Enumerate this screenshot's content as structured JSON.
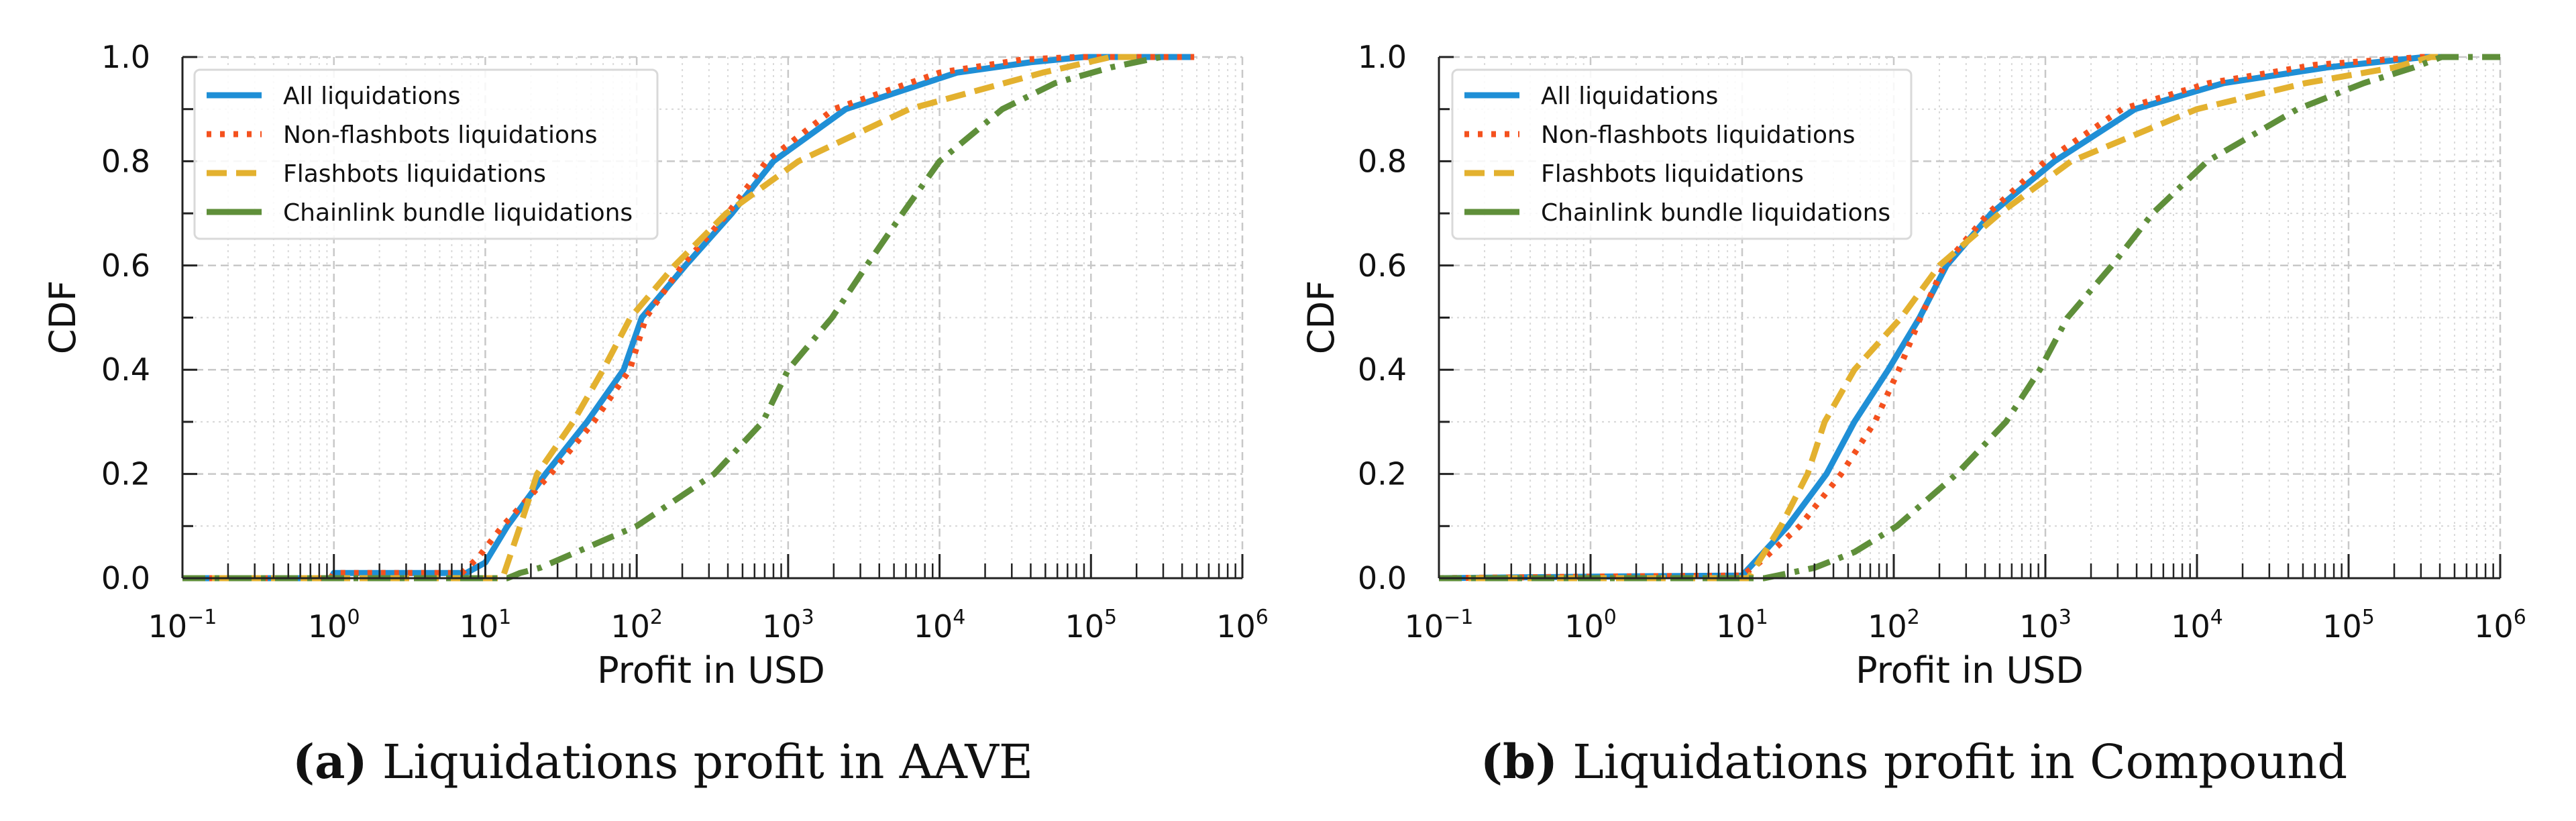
{
  "chart_data": [
    {
      "type": "line",
      "id": "aave",
      "caption_prefix": "(a)",
      "caption": "Liquidations profit in AAVE",
      "xlabel": "Profit in USD",
      "ylabel": "CDF",
      "xscale": "log",
      "xlim": [
        0.1,
        1000000
      ],
      "ylim": [
        0.0,
        1.0
      ],
      "xticks": [
        {
          "base": "10",
          "exp": "−1"
        },
        {
          "base": "10",
          "exp": "0"
        },
        {
          "base": "10",
          "exp": "1"
        },
        {
          "base": "10",
          "exp": "2"
        },
        {
          "base": "10",
          "exp": "3"
        },
        {
          "base": "10",
          "exp": "4"
        },
        {
          "base": "10",
          "exp": "5"
        },
        {
          "base": "10",
          "exp": "6"
        }
      ],
      "yticks": [
        "0.0",
        "0.2",
        "0.4",
        "0.6",
        "0.8",
        "1.0"
      ],
      "grid": true,
      "legend_position": "upper-left",
      "series": [
        {
          "name": "All liquidations",
          "style": "solid",
          "color": "#1f8fd6",
          "points": [
            [
              0.1,
              0.0
            ],
            [
              0.95,
              0.0
            ],
            [
              1.0,
              0.01
            ],
            [
              7.5,
              0.01
            ],
            [
              10,
              0.03
            ],
            [
              14,
              0.1
            ],
            [
              25,
              0.2
            ],
            [
              47,
              0.3
            ],
            [
              82,
              0.4
            ],
            [
              108,
              0.5
            ],
            [
              210,
              0.6
            ],
            [
              425,
              0.7
            ],
            [
              800,
              0.8
            ],
            [
              2400,
              0.9
            ],
            [
              13000,
              0.97
            ],
            [
              40000,
              0.99
            ],
            [
              90000,
              1.0
            ],
            [
              480000,
              1.0
            ]
          ]
        },
        {
          "name": "Non-flashbots liquidations",
          "style": "dotted",
          "color": "#f4511e",
          "points": [
            [
              0.1,
              0.0
            ],
            [
              0.95,
              0.0
            ],
            [
              1.0,
              0.01
            ],
            [
              7.0,
              0.01
            ],
            [
              9,
              0.04
            ],
            [
              13,
              0.1
            ],
            [
              27,
              0.2
            ],
            [
              52,
              0.3
            ],
            [
              90,
              0.4
            ],
            [
              115,
              0.5
            ],
            [
              200,
              0.6
            ],
            [
              400,
              0.7
            ],
            [
              720,
              0.8
            ],
            [
              2000,
              0.9
            ],
            [
              10000,
              0.97
            ],
            [
              35000,
              0.995
            ],
            [
              80000,
              1.0
            ],
            [
              480000,
              1.0
            ]
          ]
        },
        {
          "name": "Flashbots liquidations",
          "style": "dashed",
          "color": "#e3b12f",
          "points": [
            [
              0.1,
              0.0
            ],
            [
              13,
              0.0
            ],
            [
              17,
              0.1
            ],
            [
              22,
              0.2
            ],
            [
              38,
              0.3
            ],
            [
              60,
              0.4
            ],
            [
              91,
              0.5
            ],
            [
              178,
              0.6
            ],
            [
              390,
              0.7
            ],
            [
              1170,
              0.8
            ],
            [
              6300,
              0.9
            ],
            [
              48000,
              0.97
            ],
            [
              135000,
              1.0
            ],
            [
              200000,
              1.0
            ]
          ]
        },
        {
          "name": "Chainlink bundle liquidations",
          "style": "dashdot",
          "color": "#5f8f3a",
          "points": [
            [
              0.1,
              0.0
            ],
            [
              14,
              0.0
            ],
            [
              17,
              0.01
            ],
            [
              23,
              0.02
            ],
            [
              40,
              0.05
            ],
            [
              100,
              0.1
            ],
            [
              325,
              0.2
            ],
            [
              680,
              0.3
            ],
            [
              1000,
              0.4
            ],
            [
              1950,
              0.5
            ],
            [
              3300,
              0.6
            ],
            [
              5700,
              0.7
            ],
            [
              10000,
              0.8
            ],
            [
              26000,
              0.9
            ],
            [
              58000,
              0.95
            ],
            [
              135000,
              0.98
            ],
            [
              290000,
              1.0
            ]
          ]
        }
      ]
    },
    {
      "type": "line",
      "id": "compound",
      "caption_prefix": "(b)",
      "caption": "Liquidations profit in Compound",
      "xlabel": "Profit in USD",
      "ylabel": "CDF",
      "xscale": "log",
      "xlim": [
        0.1,
        1000000
      ],
      "ylim": [
        0.0,
        1.0
      ],
      "xticks": [
        {
          "base": "10",
          "exp": "−1"
        },
        {
          "base": "10",
          "exp": "0"
        },
        {
          "base": "10",
          "exp": "1"
        },
        {
          "base": "10",
          "exp": "2"
        },
        {
          "base": "10",
          "exp": "3"
        },
        {
          "base": "10",
          "exp": "4"
        },
        {
          "base": "10",
          "exp": "5"
        },
        {
          "base": "10",
          "exp": "6"
        }
      ],
      "yticks": [
        "0.0",
        "0.2",
        "0.4",
        "0.6",
        "0.8",
        "1.0"
      ],
      "grid": true,
      "legend_position": "upper-left",
      "series": [
        {
          "name": "All liquidations",
          "style": "solid",
          "color": "#1f8fd6",
          "points": [
            [
              0.1,
              0.0
            ],
            [
              1.0,
              0.003
            ],
            [
              10,
              0.005
            ],
            [
              12,
              0.03
            ],
            [
              20,
              0.1
            ],
            [
              36,
              0.2
            ],
            [
              55,
              0.3
            ],
            [
              92,
              0.4
            ],
            [
              148,
              0.5
            ],
            [
              223,
              0.6
            ],
            [
              440,
              0.7
            ],
            [
              1150,
              0.8
            ],
            [
              3900,
              0.9
            ],
            [
              15000,
              0.95
            ],
            [
              72000,
              0.98
            ],
            [
              320000,
              1.0
            ],
            [
              470000,
              1.0
            ]
          ]
        },
        {
          "name": "Non-flashbots liquidations",
          "style": "dotted",
          "color": "#f4511e",
          "points": [
            [
              0.1,
              0.0
            ],
            [
              1.0,
              0.003
            ],
            [
              10,
              0.005
            ],
            [
              13,
              0.03
            ],
            [
              24,
              0.1
            ],
            [
              45,
              0.2
            ],
            [
              75,
              0.3
            ],
            [
              108,
              0.4
            ],
            [
              150,
              0.5
            ],
            [
              215,
              0.6
            ],
            [
              420,
              0.7
            ],
            [
              1000,
              0.8
            ],
            [
              3200,
              0.9
            ],
            [
              12000,
              0.95
            ],
            [
              60000,
              0.985
            ],
            [
              300000,
              1.0
            ],
            [
              470000,
              1.0
            ]
          ]
        },
        {
          "name": "Flashbots liquidations",
          "style": "dashed",
          "color": "#e3b12f",
          "points": [
            [
              0.1,
              0.0
            ],
            [
              11,
              0.0
            ],
            [
              18,
              0.1
            ],
            [
              27,
              0.2
            ],
            [
              35,
              0.3
            ],
            [
              55,
              0.4
            ],
            [
              112,
              0.5
            ],
            [
              200,
              0.6
            ],
            [
              500,
              0.7
            ],
            [
              1480,
              0.8
            ],
            [
              10000,
              0.9
            ],
            [
              52000,
              0.95
            ],
            [
              200000,
              0.98
            ],
            [
              350000,
              1.0
            ],
            [
              470000,
              1.0
            ]
          ]
        },
        {
          "name": "Chainlink bundle liquidations",
          "style": "dashdot",
          "color": "#5f8f3a",
          "points": [
            [
              0.1,
              0.0
            ],
            [
              14,
              0.0
            ],
            [
              17,
              0.005
            ],
            [
              30,
              0.02
            ],
            [
              55,
              0.05
            ],
            [
              105,
              0.1
            ],
            [
              260,
              0.2
            ],
            [
              550,
              0.3
            ],
            [
              920,
              0.4
            ],
            [
              1400,
              0.5
            ],
            [
              2750,
              0.6
            ],
            [
              5100,
              0.7
            ],
            [
              11700,
              0.8
            ],
            [
              46000,
              0.9
            ],
            [
              126000,
              0.95
            ],
            [
              270000,
              0.98
            ],
            [
              410000,
              1.0
            ],
            [
              1000000,
              1.0
            ]
          ]
        }
      ]
    }
  ]
}
